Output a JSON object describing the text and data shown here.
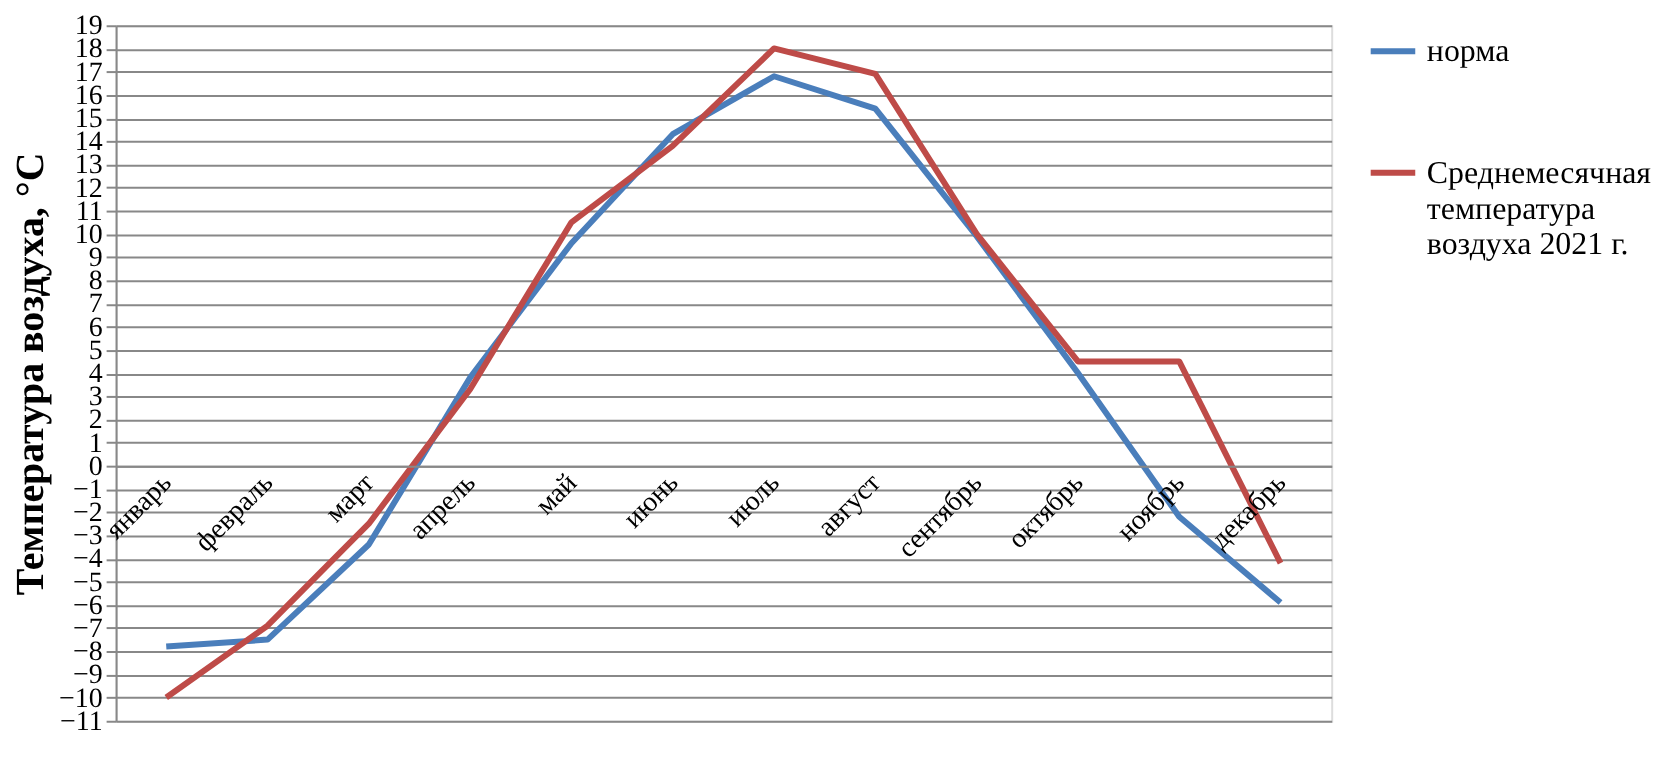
{
  "chart_data": {
    "type": "line",
    "ylabel": "Температура воздуха, °C",
    "categories": [
      "январь",
      "февраль",
      "март",
      "апрель",
      "май",
      "июнь",
      "июль",
      "август",
      "сентябрь",
      "октябрь",
      "ноябрь",
      "декабрь"
    ],
    "series": [
      {
        "name": "норма",
        "color": "#4a7ebb",
        "values": [
          -7.8,
          -7.5,
          -3.4,
          3.8,
          9.6,
          14.3,
          16.8,
          15.4,
          9.9,
          4.0,
          -2.2,
          -5.9
        ]
      },
      {
        "name": "Среднемесячная температура воздуха 2021 г.",
        "color": "#be4b48",
        "values": [
          -10.0,
          -6.9,
          -2.5,
          3.3,
          10.5,
          13.8,
          18.0,
          16.9,
          10.0,
          4.5,
          4.5,
          -4.2
        ]
      }
    ],
    "ylim": [
      -11,
      19
    ],
    "yticks": [
      -11,
      -10,
      -9,
      -8,
      -7,
      -6,
      -5,
      -4,
      -3,
      -2,
      -1,
      0,
      1,
      2,
      3,
      4,
      5,
      6,
      7,
      8,
      9,
      10,
      11,
      12,
      13,
      14,
      15,
      16,
      17,
      18,
      19
    ],
    "grid": "y",
    "legend": "right",
    "marker": "none",
    "line_style": "solid"
  }
}
